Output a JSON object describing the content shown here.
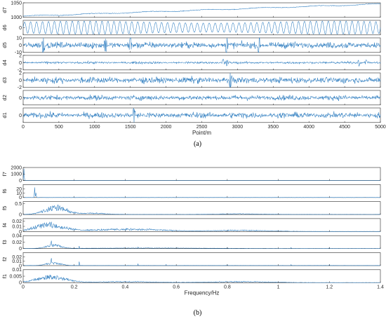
{
  "colors": {
    "line": "#2b7bbf",
    "axes": "#262626"
  },
  "chart_data": [
    {
      "type": "line",
      "caption": "(a)",
      "xlabel": "Point/m",
      "xlim": [
        0,
        5000
      ],
      "xticks": [
        "0",
        "500",
        "1000",
        "1500",
        "2000",
        "2500",
        "3000",
        "3500",
        "4000",
        "4500",
        "5000"
      ],
      "grid": false,
      "series": [
        {
          "name": "d7",
          "ylim": [
            1000,
            1050
          ],
          "yticks": [
            "1000",
            "1050"
          ],
          "shape": {
            "kind": "trend",
            "start": 1004,
            "end": 1046,
            "noise": 3
          }
        },
        {
          "name": "d6",
          "ylim": [
            -50,
            50
          ],
          "yticks": [
            "0"
          ],
          "shape": {
            "kind": "sine",
            "amp": 45,
            "cycles": 60
          }
        },
        {
          "name": "d5",
          "ylim": [
            -10,
            10
          ],
          "yticks": [
            "-10",
            "0",
            "10"
          ],
          "shape": {
            "kind": "noise",
            "amp": 5,
            "spikes": [
              280,
              1150,
              1500,
              2850,
              3300
            ]
          }
        },
        {
          "name": "d4",
          "ylim": [
            -2,
            2
          ],
          "yticks": [
            "-2",
            "0",
            "2"
          ],
          "shape": {
            "kind": "noise",
            "amp": 0.35,
            "spikes": [
              2800,
              2850,
              4700,
              4800
            ]
          }
        },
        {
          "name": "d3",
          "ylim": [
            -2,
            2
          ],
          "yticks": [
            "-2",
            "0",
            "2"
          ],
          "shape": {
            "kind": "noise",
            "amp": 1.0,
            "spikes": [
              2900
            ]
          }
        },
        {
          "name": "d2",
          "ylim": [
            -2,
            2
          ],
          "yticks": [
            "0"
          ],
          "shape": {
            "kind": "noise",
            "amp": 0.8,
            "spikes": []
          }
        },
        {
          "name": "d1",
          "ylim": [
            -2,
            2
          ],
          "yticks": [
            "0"
          ],
          "shape": {
            "kind": "noise",
            "amp": 0.9,
            "spikes": [
              1550
            ]
          }
        }
      ]
    },
    {
      "type": "line",
      "caption": "(b)",
      "xlabel": "Frequency/Hz",
      "xlim": [
        0,
        1.4
      ],
      "xticks": [
        "0",
        "0.2",
        "0.4",
        "0.6",
        "0.8",
        "1",
        "1.2",
        "1.4"
      ],
      "grid": false,
      "series": [
        {
          "name": "f7",
          "ylim": [
            0,
            2000
          ],
          "yticks": [
            "0",
            "1000",
            "2000"
          ],
          "shape": {
            "kind": "peak",
            "peaks": [
              [
                0.003,
                1900
              ]
            ],
            "floor": 2
          }
        },
        {
          "name": "f6",
          "ylim": [
            0,
            30
          ],
          "yticks": [
            "0",
            "10",
            "20"
          ],
          "shape": {
            "kind": "peak",
            "peaks": [
              [
                0.045,
                25
              ],
              [
                0.05,
                12
              ]
            ],
            "floor": 0.3
          }
        },
        {
          "name": "f5",
          "ylim": [
            0,
            0.6
          ],
          "yticks": [
            "0",
            "0.5"
          ],
          "shape": {
            "kind": "band",
            "centers": [
              [
                0.13,
                0.06,
                0.45
              ],
              [
                0.28,
                0.06,
                0.08
              ],
              [
                0.85,
                0.12,
                0.04
              ]
            ],
            "floor": 0.01
          }
        },
        {
          "name": "f4",
          "ylim": [
            0,
            0.025
          ],
          "yticks": [
            "0",
            "0.01",
            "0.02"
          ],
          "shape": {
            "kind": "band",
            "centers": [
              [
                0.1,
                0.08,
                0.018
              ],
              [
                0.4,
                0.2,
                0.006
              ],
              [
                0.85,
                0.15,
                0.003
              ]
            ],
            "floor": 0.0005
          }
        },
        {
          "name": "f3",
          "ylim": [
            0,
            0.04
          ],
          "yticks": [
            "0",
            "0.02",
            "0.04"
          ],
          "shape": {
            "kind": "band",
            "centers": [
              [
                0.12,
                0.04,
                0.015
              ],
              [
                0.5,
                0.3,
                0.002
              ]
            ],
            "floor": 0.0005,
            "lines": [
              [
                0.11,
                0.035
              ],
              [
                0.22,
                0.01
              ],
              [
                0.45,
                0.005
              ],
              [
                0.8,
                0.004
              ],
              [
                1.05,
                0.004
              ],
              [
                1.2,
                0.004
              ]
            ]
          }
        },
        {
          "name": "f2",
          "ylim": [
            0,
            0.03
          ],
          "yticks": [
            "0",
            "0.01",
            "0.02"
          ],
          "shape": {
            "kind": "band",
            "centers": [
              [
                0.12,
                0.04,
                0.008
              ]
            ],
            "floor": 0.0005,
            "lines": [
              [
                0.11,
                0.025
              ],
              [
                0.22,
                0.012
              ],
              [
                0.45,
                0.004
              ],
              [
                0.56,
                0.004
              ],
              [
                0.8,
                0.003
              ],
              [
                1.05,
                0.003
              ],
              [
                1.2,
                0.003
              ]
            ]
          }
        },
        {
          "name": "f1",
          "ylim": [
            0,
            0.01
          ],
          "yticks": [
            "0",
            "0.005",
            "0.01"
          ],
          "shape": {
            "kind": "band",
            "centers": [
              [
                0.11,
                0.08,
                0.006
              ],
              [
                0.4,
                0.15,
                0.001
              ],
              [
                0.85,
                0.15,
                0.001
              ]
            ],
            "floor": 0.0002
          }
        }
      ]
    }
  ]
}
